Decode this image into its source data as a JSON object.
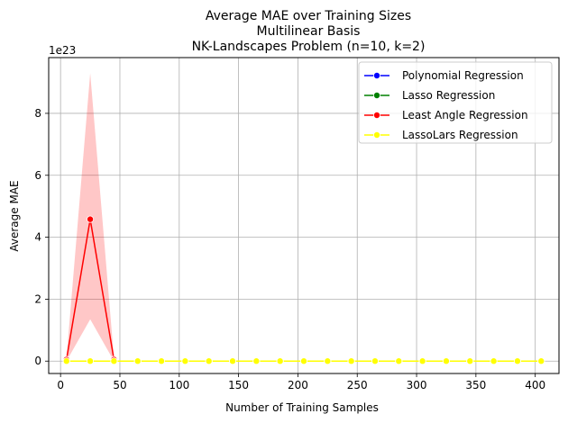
{
  "chart_data": {
    "type": "line",
    "title": [
      "Average MAE over Training Sizes",
      "Multilinear Basis",
      "NK-Landscapes Problem (n=10, k=2)"
    ],
    "xlabel": "Number of Training Samples",
    "ylabel": "Average MAE",
    "y_multiplier_label": "1e23",
    "xlim": [
      -10,
      420
    ],
    "ylim": [
      -0.4,
      9.8
    ],
    "x_ticks": [
      0,
      50,
      100,
      150,
      200,
      250,
      300,
      350,
      400
    ],
    "y_ticks": [
      0,
      2,
      4,
      6,
      8
    ],
    "grid": true,
    "legend_position": "top-right",
    "x": [
      5,
      25,
      45,
      65,
      85,
      105,
      125,
      145,
      165,
      185,
      205,
      225,
      245,
      265,
      285,
      305,
      325,
      345,
      365,
      385,
      405
    ],
    "series": [
      {
        "name": "Polynomial Regression",
        "color": "#0000ff",
        "values": [
          0,
          0,
          0,
          0,
          0,
          0,
          0,
          0,
          0,
          0,
          0,
          0,
          0,
          0,
          0,
          0,
          0,
          0,
          0,
          0,
          0
        ]
      },
      {
        "name": "Lasso Regression",
        "color": "#008000",
        "values": [
          0,
          0,
          0,
          0,
          0,
          0,
          0,
          0,
          0,
          0,
          0,
          0,
          0,
          0,
          0,
          0,
          0,
          0,
          0,
          0,
          0
        ]
      },
      {
        "name": "Least Angle Regression",
        "color": "#ff0000",
        "values": [
          0.05,
          4.58,
          0.05
        ],
        "x": [
          5,
          25,
          45
        ],
        "ci_lower": [
          0.0,
          1.35,
          0.0
        ],
        "ci_upper": [
          0.1,
          9.3,
          0.1
        ]
      },
      {
        "name": "LassoLars Regression",
        "color": "#ffff00",
        "values": [
          0,
          0,
          0,
          0,
          0,
          0,
          0,
          0,
          0,
          0,
          0,
          0,
          0,
          0,
          0,
          0,
          0,
          0,
          0,
          0,
          0
        ]
      }
    ]
  }
}
